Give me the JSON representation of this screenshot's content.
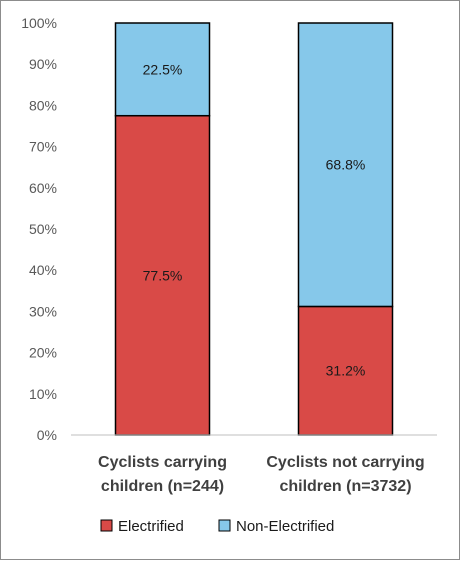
{
  "chart_data": {
    "type": "bar",
    "stacked": true,
    "percent_stacked": true,
    "categories": [
      [
        "Cyclists carrying",
        "children (n=244)"
      ],
      [
        "Cyclists not carrying",
        "children (n=3732)"
      ]
    ],
    "series": [
      {
        "name": "Electrified",
        "values": [
          77.5,
          31.2
        ],
        "color": "#d94a47"
      },
      {
        "name": "Non-Electrified",
        "values": [
          22.5,
          68.8
        ],
        "color": "#86c8ea"
      }
    ],
    "data_labels": [
      [
        "77.5%",
        "31.2%"
      ],
      [
        "22.5%",
        "68.8%"
      ]
    ],
    "y_ticks": [
      "0%",
      "10%",
      "20%",
      "30%",
      "40%",
      "50%",
      "60%",
      "70%",
      "80%",
      "90%",
      "100%"
    ],
    "ylim": [
      0,
      100
    ],
    "grid": false,
    "legend_position": "bottom"
  }
}
